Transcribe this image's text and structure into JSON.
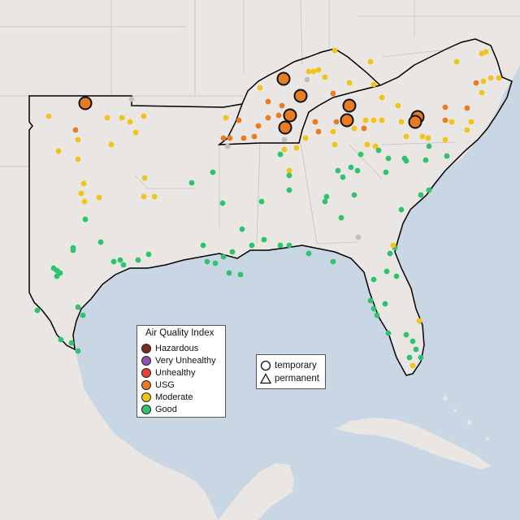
{
  "legend": {
    "title": "Air Quality Index",
    "categories": [
      {
        "label": "Hazardous",
        "color": "#7a2a23"
      },
      {
        "label": "Very Unhealthy",
        "color": "#8e55b3"
      },
      {
        "label": "Unhealthy",
        "color": "#e8452f"
      },
      {
        "label": "USG",
        "color": "#e87c22"
      },
      {
        "label": "Moderate",
        "color": "#f2c416"
      },
      {
        "label": "Good",
        "color": "#2ec36e"
      }
    ]
  },
  "shape_legend": {
    "temporary": "temporary",
    "permanent": "permanent"
  },
  "colors": {
    "ocean": "#c9d6e4",
    "land": "#e9e6e3",
    "no_data": "#bfbfbf"
  }
}
